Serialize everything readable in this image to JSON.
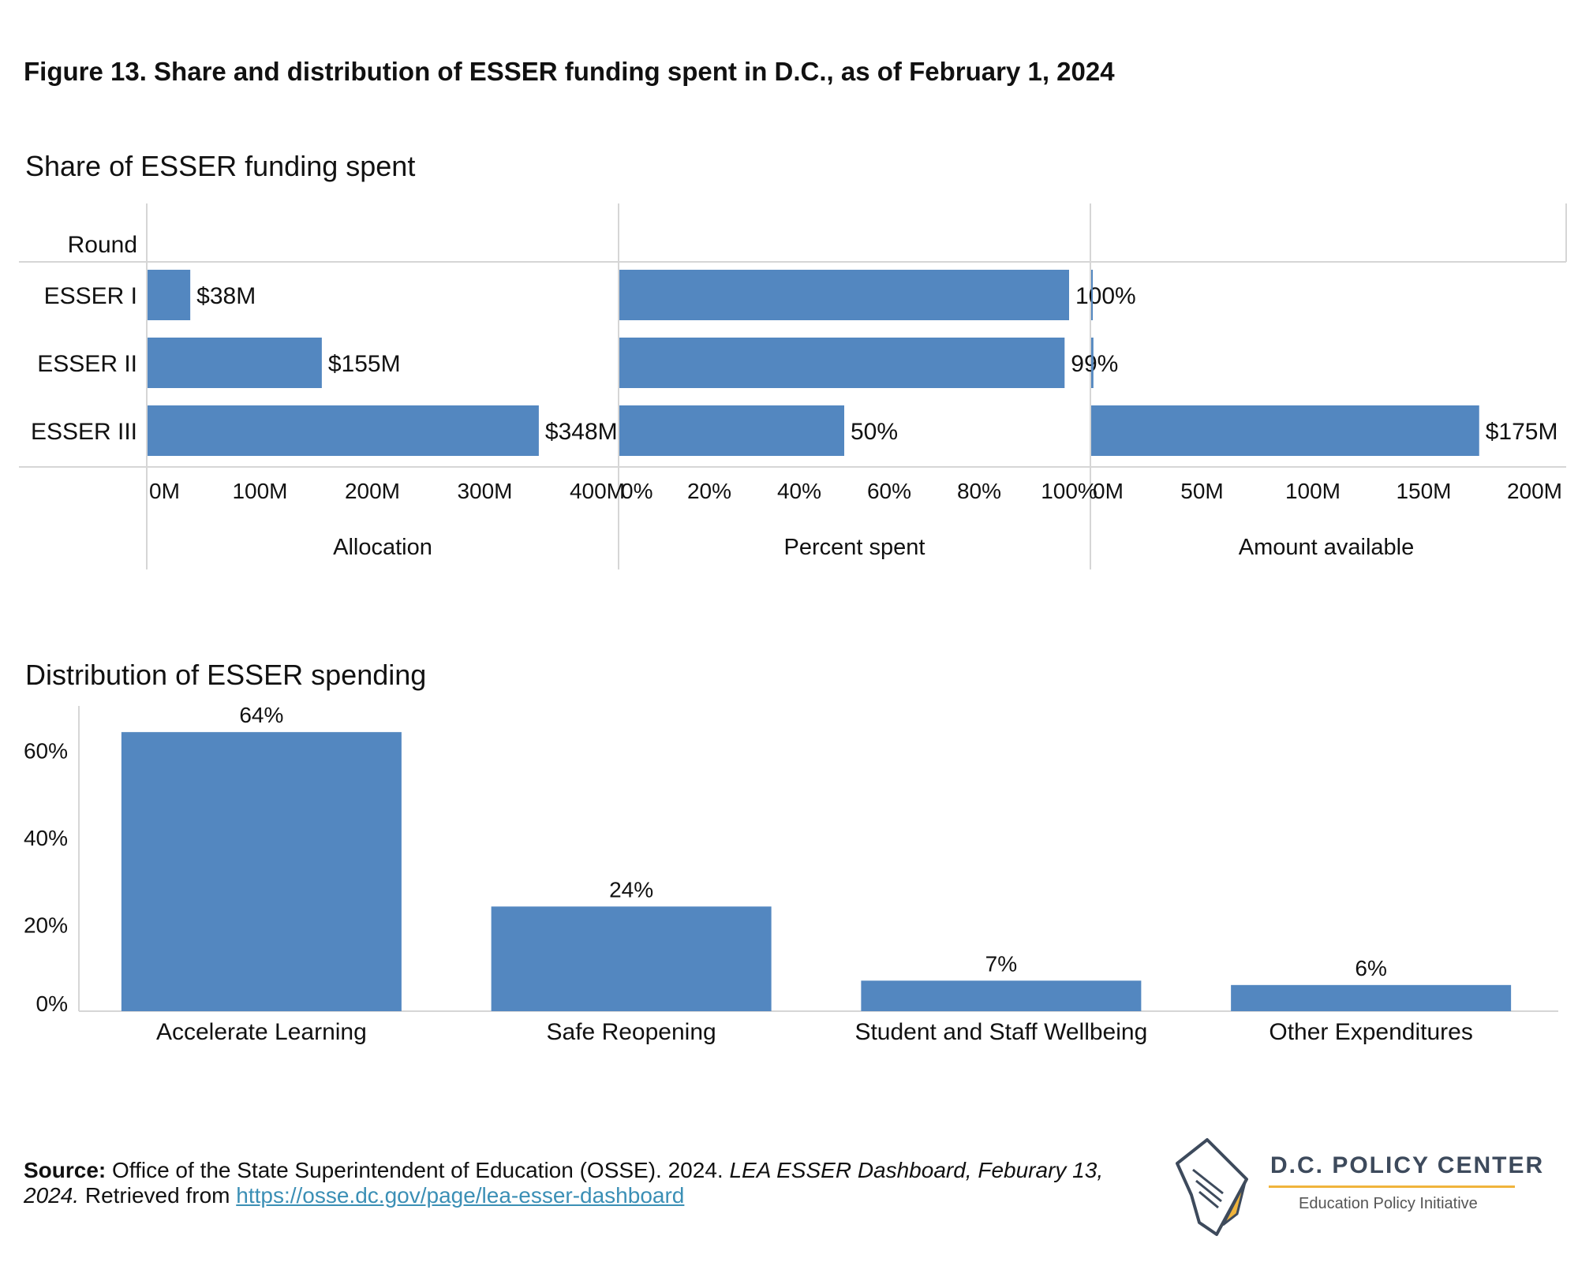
{
  "figure_title": "Figure 13. Share and distribution of ESSER funding spent in D.C., as of February 1, 2024",
  "colors": {
    "bar": "#5387c0",
    "grid": "#d6d6d6",
    "link": "#3b8fb5",
    "logo_accent": "#f0b43c"
  },
  "chart_data": [
    {
      "type": "bar",
      "orientation": "horizontal",
      "title": "Share of ESSER funding spent",
      "row_header": "Round",
      "categories": [
        "ESSER I",
        "ESSER II",
        "ESSER III"
      ],
      "panels": [
        {
          "name": "Allocation",
          "values": [
            38,
            155,
            348
          ],
          "unit": "M",
          "labels": [
            "$38M",
            "$155M",
            "$348M"
          ],
          "xlim": [
            0,
            400
          ],
          "ticks": [
            "0M",
            "100M",
            "200M",
            "300M",
            "400M"
          ],
          "tick_values": [
            0,
            100,
            200,
            300,
            400
          ]
        },
        {
          "name": "Percent spent",
          "values": [
            100,
            99,
            50
          ],
          "unit": "%",
          "labels": [
            "100%",
            "99%",
            "50%"
          ],
          "xlim": [
            0,
            100
          ],
          "ticks": [
            "0%",
            "20%",
            "40%",
            "60%",
            "80%",
            "100%"
          ],
          "tick_values": [
            0,
            20,
            40,
            60,
            80,
            100
          ]
        },
        {
          "name": "Amount available",
          "values": [
            0.5,
            1,
            175
          ],
          "unit": "M",
          "labels": [
            "",
            "",
            "$175M"
          ],
          "xlim": [
            0,
            200
          ],
          "ticks": [
            "0M",
            "50M",
            "100M",
            "150M",
            "200M"
          ],
          "tick_values": [
            0,
            50,
            100,
            150,
            200
          ]
        }
      ]
    },
    {
      "type": "bar",
      "orientation": "vertical",
      "title": "Distribution of ESSER spending",
      "categories": [
        "Accelerate Learning",
        "Safe Reopening",
        "Student and Staff Wellbeing",
        "Other Expenditures"
      ],
      "values": [
        64,
        24,
        7,
        6
      ],
      "labels": [
        "64%",
        "24%",
        "7%",
        "6%"
      ],
      "ylim": [
        0,
        70
      ],
      "yticks": [
        "0%",
        "20%",
        "40%",
        "60%"
      ],
      "ytick_values": [
        0,
        20,
        40,
        60
      ]
    }
  ],
  "source": {
    "label": "Source:",
    "text_before": "Office of the State Superintendent of Education (OSSE). 2024. ",
    "italic": "LEA ESSER Dashboard, Feburary 13, 2024.",
    "text_after": " Retrieved from ",
    "link": "https://osse.dc.gov/page/lea-esser-dashboard"
  },
  "logo": {
    "name": "D.C. POLICY CENTER",
    "subtitle": "Education Policy Initiative"
  }
}
